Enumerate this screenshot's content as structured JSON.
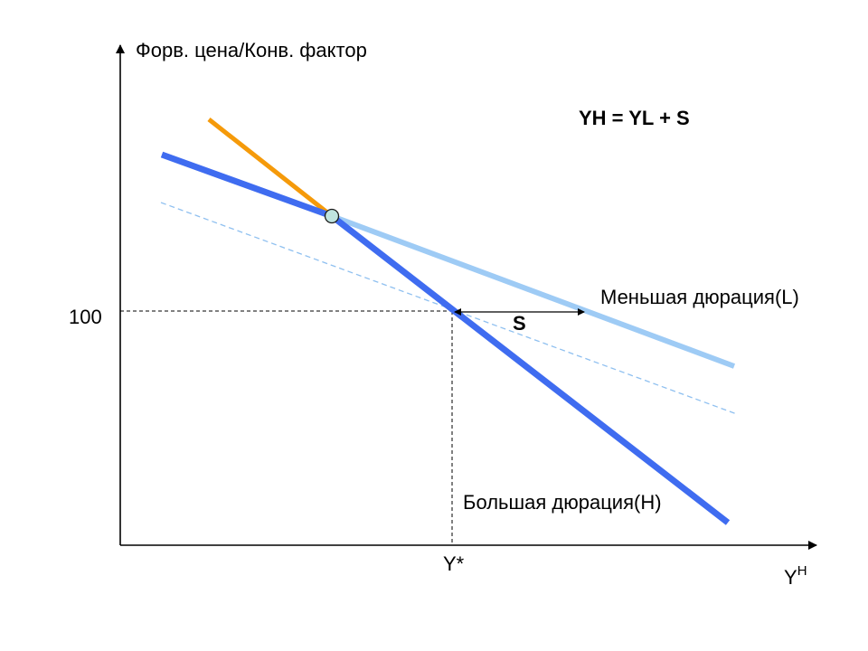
{
  "axes": {
    "y_title": "Форв. цена/Конв. фактор",
    "x_title_base": "Y",
    "x_title_sup": "H"
  },
  "ticks": {
    "y_value": "100",
    "x_value": "Y*"
  },
  "annotations": {
    "formula": "YH = YL + S",
    "spread": "S",
    "low_duration": "Меньшая дюрация(L)",
    "high_duration": "Большая дюрация(H)"
  },
  "colors": {
    "axis": "#000000",
    "high_duration_line": "#3f6cf0",
    "low_duration_line": "#9ecbf5",
    "shifted_line": "#8fc0f0",
    "steep_segment": "#f59a0a",
    "intersection_point": "#bfe3df",
    "guide": "#000000"
  }
}
